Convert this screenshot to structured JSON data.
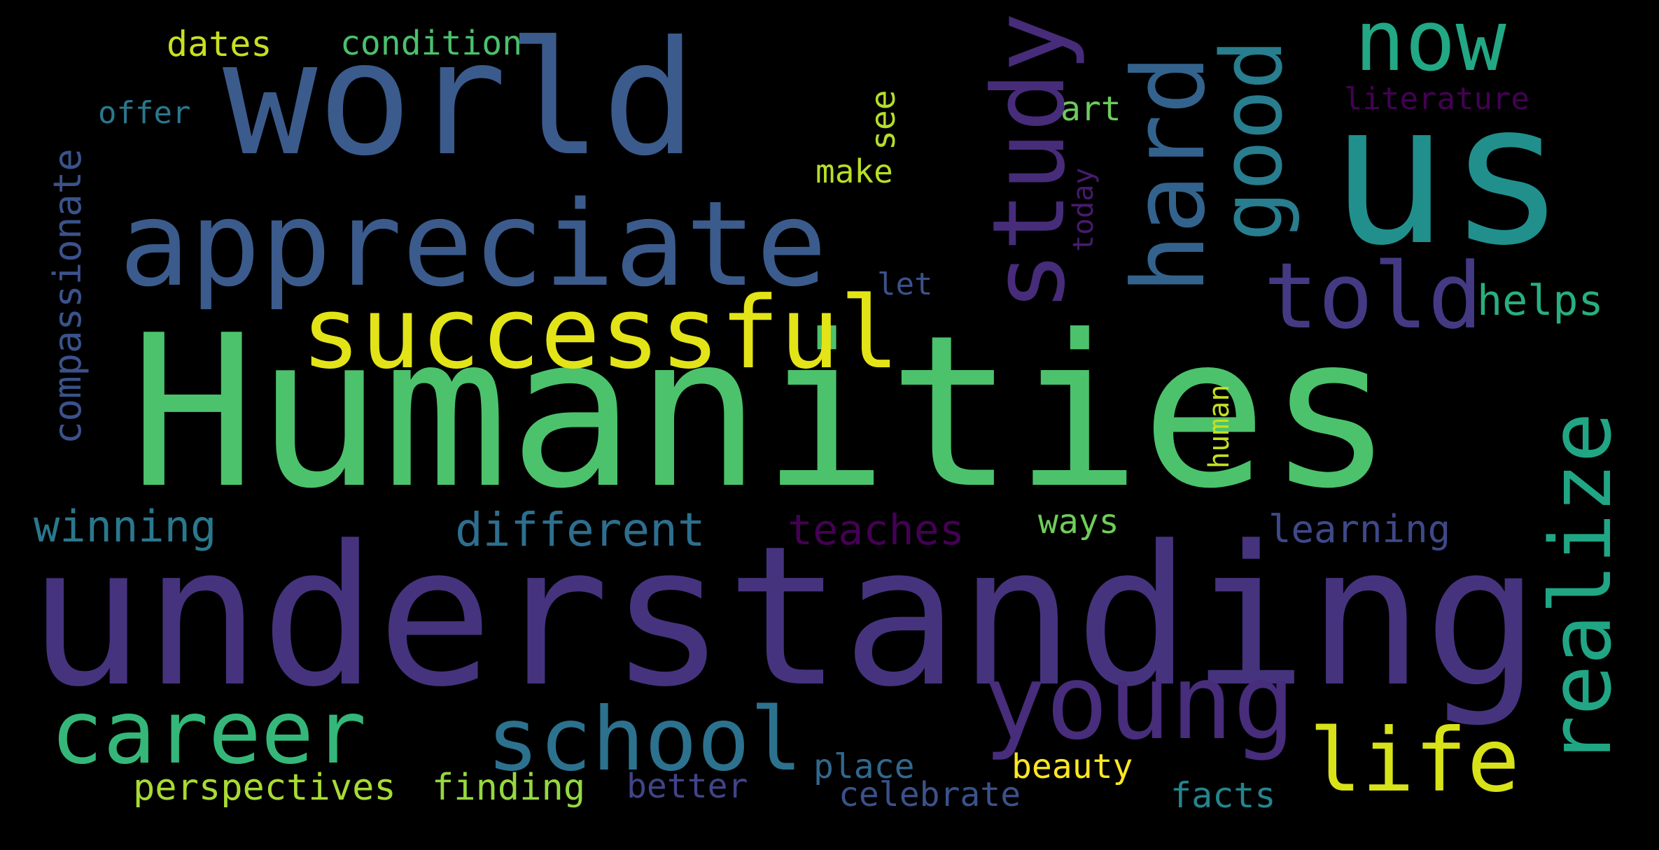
{
  "words": [
    {
      "text": "Humanities",
      "color": "#4cc26c"
    },
    {
      "text": "understanding",
      "color": "#46337e"
    },
    {
      "text": "world",
      "color": "#3b5b8c"
    },
    {
      "text": "appreciate",
      "color": "#3b5b8c"
    },
    {
      "text": "us",
      "color": "#21908d"
    },
    {
      "text": "successful",
      "color": "#e3e418"
    },
    {
      "text": "study",
      "color": "#472c7a"
    },
    {
      "text": "hard",
      "color": "#33638d"
    },
    {
      "text": "good",
      "color": "#287d8e"
    },
    {
      "text": "now",
      "color": "#22a884"
    },
    {
      "text": "told",
      "color": "#443a83"
    },
    {
      "text": "realize",
      "color": "#21a685"
    },
    {
      "text": "career",
      "color": "#35b779"
    },
    {
      "text": "school",
      "color": "#2c728e"
    },
    {
      "text": "young",
      "color": "#472d7b"
    },
    {
      "text": "life",
      "color": "#d8e219"
    },
    {
      "text": "different",
      "color": "#2e6e8e"
    },
    {
      "text": "winning",
      "color": "#2a788e"
    },
    {
      "text": "teaches",
      "color": "#440154"
    },
    {
      "text": "compassionate",
      "color": "#3b528b"
    },
    {
      "text": "helps",
      "color": "#29af7f"
    },
    {
      "text": "learning",
      "color": "#3e4989"
    },
    {
      "text": "dates",
      "color": "#c8e020"
    },
    {
      "text": "condition",
      "color": "#4ac16d"
    },
    {
      "text": "offer",
      "color": "#2a788e"
    },
    {
      "text": "see",
      "color": "#b5de2b"
    },
    {
      "text": "art",
      "color": "#6ccd5a"
    },
    {
      "text": "literature",
      "color": "#440154"
    },
    {
      "text": "make",
      "color": "#b8de29"
    },
    {
      "text": "today",
      "color": "#481b6d"
    },
    {
      "text": "let",
      "color": "#3b528b"
    },
    {
      "text": "human",
      "color": "#c5e021"
    },
    {
      "text": "ways",
      "color": "#6ece58"
    },
    {
      "text": "perspectives",
      "color": "#a8db34"
    },
    {
      "text": "finding",
      "color": "#95d840"
    },
    {
      "text": "better",
      "color": "#414487"
    },
    {
      "text": "place",
      "color": "#31688e"
    },
    {
      "text": "celebrate",
      "color": "#3b528b"
    },
    {
      "text": "beauty",
      "color": "#fde725"
    },
    {
      "text": "facts",
      "color": "#25848e"
    }
  ]
}
